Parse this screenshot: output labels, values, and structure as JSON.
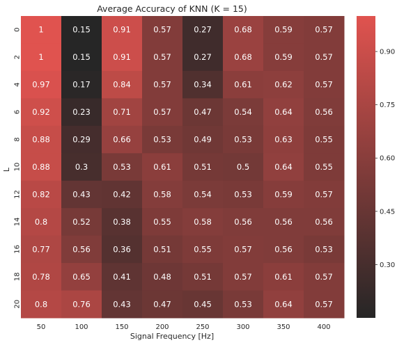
{
  "chart_data": {
    "type": "heatmap",
    "title": "Average Accuracy of KNN (K = 15)",
    "xlabel": "Signal Frequency [Hz]",
    "ylabel": "L",
    "x_categories": [
      "50",
      "100",
      "150",
      "200",
      "250",
      "300",
      "350",
      "400"
    ],
    "y_categories": [
      "0",
      "2",
      "4",
      "6",
      "8",
      "10",
      "12",
      "14",
      "16",
      "18",
      "20"
    ],
    "values": [
      [
        1,
        0.15,
        0.91,
        0.57,
        0.27,
        0.68,
        0.59,
        0.57
      ],
      [
        1,
        0.15,
        0.91,
        0.57,
        0.27,
        0.68,
        0.59,
        0.57
      ],
      [
        0.97,
        0.17,
        0.84,
        0.57,
        0.34,
        0.61,
        0.62,
        0.57
      ],
      [
        0.92,
        0.23,
        0.71,
        0.57,
        0.47,
        0.54,
        0.64,
        0.56
      ],
      [
        0.88,
        0.29,
        0.66,
        0.53,
        0.49,
        0.53,
        0.63,
        0.55
      ],
      [
        0.88,
        0.3,
        0.53,
        0.61,
        0.51,
        0.5,
        0.64,
        0.55
      ],
      [
        0.82,
        0.43,
        0.42,
        0.58,
        0.54,
        0.53,
        0.59,
        0.57
      ],
      [
        0.8,
        0.52,
        0.38,
        0.55,
        0.58,
        0.56,
        0.56,
        0.56
      ],
      [
        0.77,
        0.56,
        0.36,
        0.51,
        0.55,
        0.57,
        0.56,
        0.53
      ],
      [
        0.78,
        0.65,
        0.41,
        0.48,
        0.51,
        0.57,
        0.61,
        0.57
      ],
      [
        0.8,
        0.76,
        0.43,
        0.47,
        0.45,
        0.53,
        0.64,
        0.57
      ]
    ],
    "color_range": [
      0.15,
      1.0
    ],
    "colormap": [
      "#262626",
      "#e0534f"
    ],
    "colorbar_ticks": [
      "0.30",
      "0.45",
      "0.60",
      "0.75",
      "0.90"
    ],
    "grid": false,
    "legend": "colorbar-right"
  }
}
